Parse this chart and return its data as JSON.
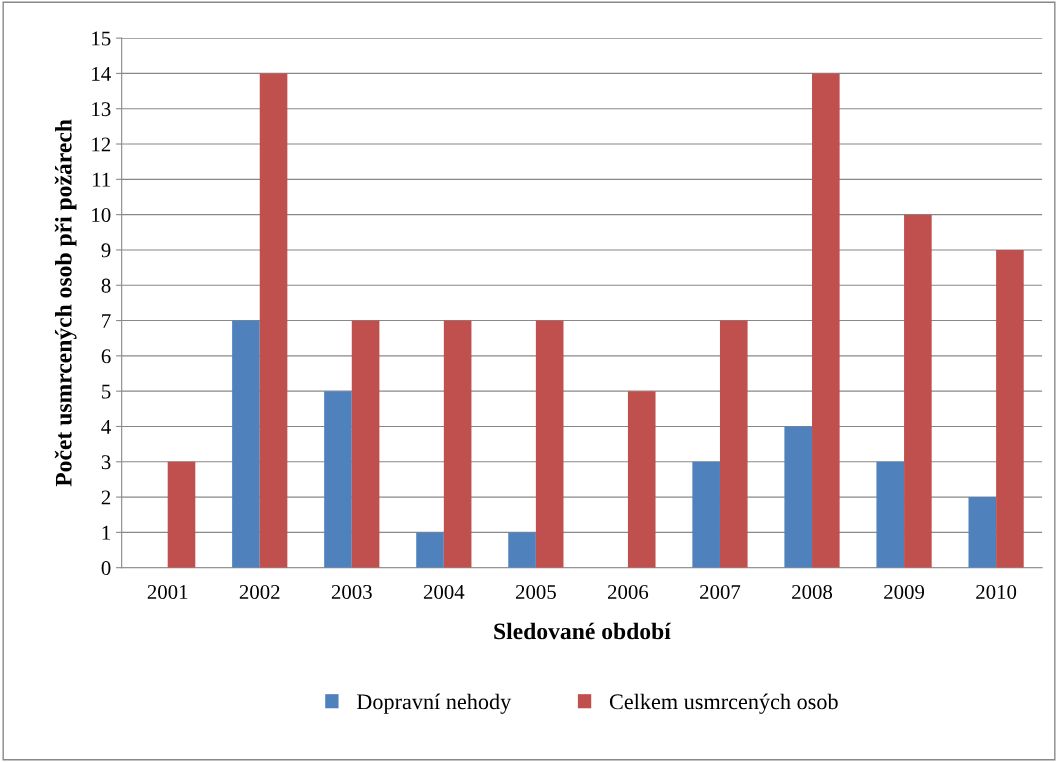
{
  "chart_data": {
    "type": "bar",
    "xlabel": "Sledované období",
    "ylabel": "Počet usmrcených osob při požárech",
    "categories": [
      "2001",
      "2002",
      "2003",
      "2004",
      "2005",
      "2006",
      "2007",
      "2008",
      "2009",
      "2010"
    ],
    "series": [
      {
        "name": "Dopravní nehody",
        "color": "#4f81bd",
        "values": [
          0,
          7,
          5,
          1,
          1,
          0,
          3,
          4,
          3,
          2
        ]
      },
      {
        "name": "Celkem usmrcených osob",
        "color": "#c0504d",
        "values": [
          3,
          14,
          7,
          7,
          7,
          5,
          7,
          14,
          10,
          9
        ]
      }
    ],
    "ylim": [
      0,
      15
    ],
    "yticks": [
      0,
      1,
      2,
      3,
      4,
      5,
      6,
      7,
      8,
      9,
      10,
      11,
      12,
      13,
      14,
      15
    ],
    "grid": "y",
    "legend": "bottom"
  }
}
